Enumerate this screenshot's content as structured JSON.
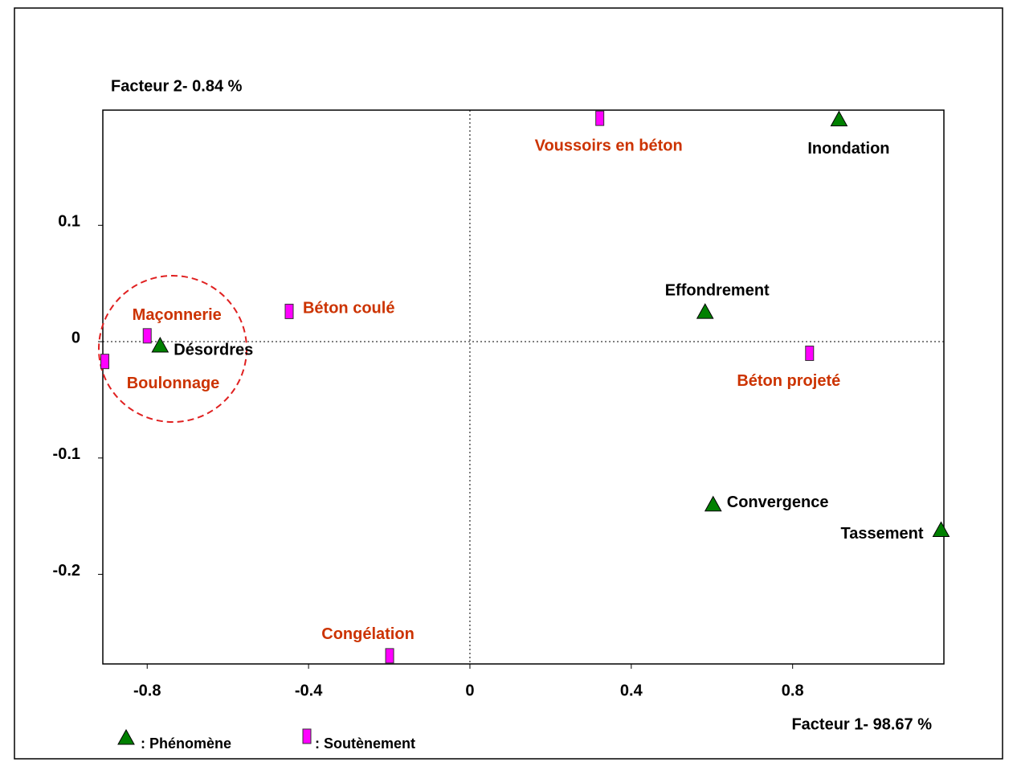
{
  "chart_data": {
    "type": "scatter",
    "xlabel": "Facteur 1- 98.67 %",
    "ylabel": "Facteur 2- 0.84 %",
    "xlim": [
      -0.91,
      1.175
    ],
    "ylim": [
      -0.277,
      0.199
    ],
    "xticks": [
      -0.8,
      -0.4,
      0,
      0.4,
      0.8
    ],
    "yticks": [
      0.1,
      0,
      -0.1,
      -0.2
    ],
    "series": [
      {
        "name": ": Phénomène",
        "marker": "triangle",
        "color": "#008000",
        "label_color": "#000000",
        "labels": [
          "Inondation",
          "Effondrement",
          "Désordres",
          "Convergence",
          "Tassement"
        ],
        "x": [
          0.915,
          0.583,
          -0.768,
          0.603,
          1.168
        ],
        "y": [
          0.191,
          0.0255,
          -0.0034,
          -0.14,
          -0.162
        ]
      },
      {
        "name": ": Soutènement",
        "marker": "rect",
        "color": "#ff00ff",
        "label_color": "#cc3300",
        "labels": [
          "Voussoirs en béton",
          "Béton coulé",
          "Maçonnerie",
          "Boulonnage",
          "Béton projeté",
          "Congélation"
        ],
        "x": [
          0.322,
          -0.448,
          -0.8,
          -0.905,
          0.842,
          -0.199
        ],
        "y": [
          0.192,
          0.026,
          0.005,
          -0.017,
          -0.01,
          -0.27
        ]
      }
    ]
  }
}
